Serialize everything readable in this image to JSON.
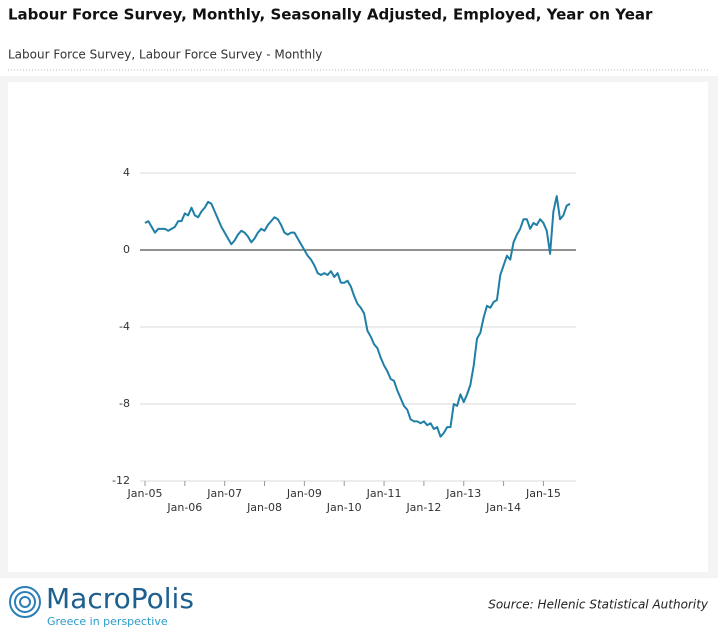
{
  "chart_data": {
    "type": "line",
    "title": "Labour Force Survey, Monthly, Seasonally Adjusted, Employed, Year on Year",
    "subtitle": "Labour Force Survey, Labour Force Survey - Monthly",
    "color": "#1f7fa6",
    "grid": true,
    "x": [
      "2005-01",
      "2005-02",
      "2005-03",
      "2005-04",
      "2005-05",
      "2005-06",
      "2005-07",
      "2005-08",
      "2005-09",
      "2005-10",
      "2005-11",
      "2005-12",
      "2006-01",
      "2006-02",
      "2006-03",
      "2006-04",
      "2006-05",
      "2006-06",
      "2006-07",
      "2006-08",
      "2006-09",
      "2006-10",
      "2006-11",
      "2006-12",
      "2007-01",
      "2007-02",
      "2007-03",
      "2007-04",
      "2007-05",
      "2007-06",
      "2007-07",
      "2007-08",
      "2007-09",
      "2007-10",
      "2007-11",
      "2007-12",
      "2008-01",
      "2008-02",
      "2008-03",
      "2008-04",
      "2008-05",
      "2008-06",
      "2008-07",
      "2008-08",
      "2008-09",
      "2008-10",
      "2008-11",
      "2008-12",
      "2009-01",
      "2009-02",
      "2009-03",
      "2009-04",
      "2009-05",
      "2009-06",
      "2009-07",
      "2009-08",
      "2009-09",
      "2009-10",
      "2009-11",
      "2009-12",
      "2010-01",
      "2010-02",
      "2010-03",
      "2010-04",
      "2010-05",
      "2010-06",
      "2010-07",
      "2010-08",
      "2010-09",
      "2010-10",
      "2010-11",
      "2010-12",
      "2011-01",
      "2011-02",
      "2011-03",
      "2011-04",
      "2011-05",
      "2011-06",
      "2011-07",
      "2011-08",
      "2011-09",
      "2011-10",
      "2011-11",
      "2011-12",
      "2012-01",
      "2012-02",
      "2012-03",
      "2012-04",
      "2012-05",
      "2012-06",
      "2012-07",
      "2012-08",
      "2012-09",
      "2012-10",
      "2012-11",
      "2012-12",
      "2013-01",
      "2013-02",
      "2013-03",
      "2013-04",
      "2013-05",
      "2013-06",
      "2013-07",
      "2013-08",
      "2013-09",
      "2013-10",
      "2013-11",
      "2013-12",
      "2014-01",
      "2014-02",
      "2014-03",
      "2014-04",
      "2014-05",
      "2014-06",
      "2014-07",
      "2014-08",
      "2014-09",
      "2014-10",
      "2014-11",
      "2014-12",
      "2015-01",
      "2015-02",
      "2015-03",
      "2015-04",
      "2015-05",
      "2015-06",
      "2015-07",
      "2015-08",
      "2015-09"
    ],
    "values": [
      1.4,
      1.5,
      1.2,
      0.9,
      1.1,
      1.1,
      1.1,
      1.0,
      1.1,
      1.2,
      1.5,
      1.5,
      1.9,
      1.8,
      2.2,
      1.8,
      1.7,
      2.0,
      2.2,
      2.5,
      2.4,
      2.0,
      1.6,
      1.2,
      0.9,
      0.6,
      0.3,
      0.5,
      0.8,
      1.0,
      0.9,
      0.7,
      0.4,
      0.6,
      0.9,
      1.1,
      1.0,
      1.3,
      1.5,
      1.7,
      1.6,
      1.3,
      0.9,
      0.8,
      0.9,
      0.9,
      0.6,
      0.3,
      0.0,
      -0.3,
      -0.5,
      -0.8,
      -1.2,
      -1.3,
      -1.2,
      -1.3,
      -1.1,
      -1.4,
      -1.2,
      -1.7,
      -1.7,
      -1.6,
      -1.9,
      -2.4,
      -2.8,
      -3.0,
      -3.3,
      -4.2,
      -4.5,
      -4.9,
      -5.1,
      -5.6,
      -6.0,
      -6.3,
      -6.7,
      -6.8,
      -7.3,
      -7.7,
      -8.1,
      -8.3,
      -8.8,
      -8.9,
      -8.9,
      -9.0,
      -8.9,
      -9.1,
      -9.0,
      -9.3,
      -9.2,
      -9.7,
      -9.5,
      -9.2,
      -9.2,
      -8.0,
      -8.1,
      -7.5,
      -7.9,
      -7.5,
      -7.0,
      -6.0,
      -4.6,
      -4.3,
      -3.5,
      -2.9,
      -3.0,
      -2.7,
      -2.6,
      -1.3,
      -0.8,
      -0.3,
      -0.5,
      0.4,
      0.8,
      1.1,
      1.6,
      1.6,
      1.1,
      1.4,
      1.3,
      1.6,
      1.4,
      1.0,
      -0.2,
      2.0,
      2.8,
      1.6,
      1.8,
      2.3,
      2.4
    ],
    "xlim": [
      "2005-01",
      "2015-09"
    ],
    "xticks": [
      {
        "value": "2005-01",
        "label": "Jan-05"
      },
      {
        "value": "2006-01",
        "label": "Jan-06"
      },
      {
        "value": "2007-01",
        "label": "Jan-07"
      },
      {
        "value": "2008-01",
        "label": "Jan-08"
      },
      {
        "value": "2009-01",
        "label": "Jan-09"
      },
      {
        "value": "2010-01",
        "label": "Jan-10"
      },
      {
        "value": "2011-01",
        "label": "Jan-11"
      },
      {
        "value": "2012-01",
        "label": "Jan-12"
      },
      {
        "value": "2013-01",
        "label": "Jan-13"
      },
      {
        "value": "2014-01",
        "label": "Jan-14"
      },
      {
        "value": "2015-01",
        "label": "Jan-15"
      }
    ],
    "ylim": [
      -12,
      4
    ],
    "yticks": [
      -12,
      -8,
      -4,
      0,
      4
    ]
  },
  "footer": {
    "brand": "MacroPolis",
    "tagline": "Greece in perspective",
    "source": "Source: Hellenic Statistical Authority"
  }
}
